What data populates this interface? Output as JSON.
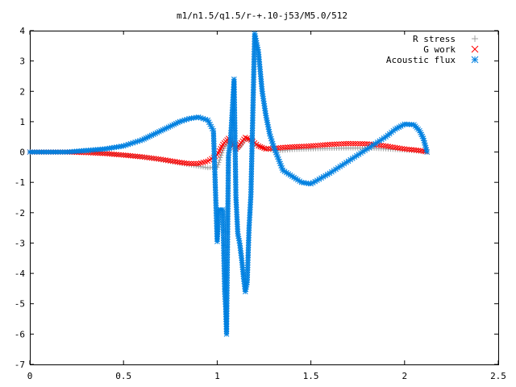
{
  "chart_data": {
    "type": "scatter",
    "title": "m1/n1.5/q1.5/r-+.10-j53/M5.0/512",
    "xlabel": "",
    "ylabel": "",
    "xlim": [
      0,
      2.5
    ],
    "ylim": [
      -7,
      4
    ],
    "x_ticks": [
      "0",
      "0.5",
      "1",
      "1.5",
      "2",
      "2.5"
    ],
    "y_ticks": [
      "-7",
      "-6",
      "-5",
      "-4",
      "-3",
      "-2",
      "-1",
      "0",
      "1",
      "2",
      "3",
      "4"
    ],
    "grid": false,
    "legend_position": "top-right",
    "series": [
      {
        "name": "R stress",
        "marker": "+",
        "color": "#a0a0a0",
        "points": [
          [
            0.0,
            0.0
          ],
          [
            0.1,
            0.0
          ],
          [
            0.2,
            0.0
          ],
          [
            0.3,
            -0.02
          ],
          [
            0.4,
            -0.05
          ],
          [
            0.5,
            -0.1
          ],
          [
            0.6,
            -0.17
          ],
          [
            0.7,
            -0.26
          ],
          [
            0.8,
            -0.37
          ],
          [
            0.85,
            -0.42
          ],
          [
            0.9,
            -0.47
          ],
          [
            0.95,
            -0.52
          ],
          [
            1.0,
            -0.5
          ],
          [
            1.03,
            0.05
          ],
          [
            1.06,
            0.4
          ],
          [
            1.08,
            0.3
          ],
          [
            1.1,
            0.05
          ],
          [
            1.12,
            0.15
          ],
          [
            1.15,
            0.45
          ],
          [
            1.18,
            0.35
          ],
          [
            1.22,
            0.2
          ],
          [
            1.26,
            0.1
          ],
          [
            1.3,
            0.05
          ],
          [
            1.35,
            0.05
          ],
          [
            1.4,
            0.08
          ],
          [
            1.5,
            0.1
          ],
          [
            1.6,
            0.12
          ],
          [
            1.7,
            0.13
          ],
          [
            1.8,
            0.13
          ],
          [
            1.9,
            0.1
          ],
          [
            2.0,
            0.06
          ],
          [
            2.05,
            0.04
          ],
          [
            2.1,
            0.01
          ],
          [
            2.12,
            0.0
          ]
        ]
      },
      {
        "name": "G work",
        "marker": "x",
        "color": "#ff0000",
        "points": [
          [
            0.0,
            0.0
          ],
          [
            0.1,
            0.0
          ],
          [
            0.2,
            0.0
          ],
          [
            0.3,
            -0.02
          ],
          [
            0.4,
            -0.05
          ],
          [
            0.5,
            -0.1
          ],
          [
            0.6,
            -0.16
          ],
          [
            0.7,
            -0.24
          ],
          [
            0.8,
            -0.34
          ],
          [
            0.85,
            -0.38
          ],
          [
            0.9,
            -0.38
          ],
          [
            0.95,
            -0.3
          ],
          [
            1.0,
            -0.1
          ],
          [
            1.03,
            0.25
          ],
          [
            1.06,
            0.45
          ],
          [
            1.08,
            0.3
          ],
          [
            1.1,
            0.1
          ],
          [
            1.12,
            0.25
          ],
          [
            1.15,
            0.48
          ],
          [
            1.18,
            0.4
          ],
          [
            1.22,
            0.2
          ],
          [
            1.26,
            0.1
          ],
          [
            1.3,
            0.12
          ],
          [
            1.35,
            0.15
          ],
          [
            1.4,
            0.17
          ],
          [
            1.5,
            0.2
          ],
          [
            1.6,
            0.25
          ],
          [
            1.7,
            0.28
          ],
          [
            1.8,
            0.27
          ],
          [
            1.9,
            0.2
          ],
          [
            2.0,
            0.1
          ],
          [
            2.05,
            0.07
          ],
          [
            2.1,
            0.03
          ],
          [
            2.12,
            0.0
          ]
        ]
      },
      {
        "name": "Acoustic flux",
        "marker": "*",
        "color": "#0080e0",
        "points": [
          [
            0.0,
            0.0
          ],
          [
            0.1,
            0.0
          ],
          [
            0.2,
            0.0
          ],
          [
            0.3,
            0.05
          ],
          [
            0.4,
            0.1
          ],
          [
            0.5,
            0.2
          ],
          [
            0.6,
            0.4
          ],
          [
            0.65,
            0.55
          ],
          [
            0.7,
            0.7
          ],
          [
            0.75,
            0.85
          ],
          [
            0.8,
            1.0
          ],
          [
            0.85,
            1.1
          ],
          [
            0.9,
            1.15
          ],
          [
            0.95,
            1.05
          ],
          [
            0.98,
            0.7
          ],
          [
            1.0,
            -2.95
          ],
          [
            1.01,
            -1.9
          ],
          [
            1.02,
            -1.9
          ],
          [
            1.03,
            -1.9
          ],
          [
            1.04,
            -4.6
          ],
          [
            1.045,
            -5.1
          ],
          [
            1.05,
            -6.0
          ],
          [
            1.06,
            -0.1
          ],
          [
            1.07,
            0.3
          ],
          [
            1.08,
            1.3
          ],
          [
            1.09,
            2.4
          ],
          [
            1.1,
            -1.5
          ],
          [
            1.11,
            -2.7
          ],
          [
            1.12,
            -3.0
          ],
          [
            1.13,
            -3.5
          ],
          [
            1.14,
            -4.1
          ],
          [
            1.15,
            -4.6
          ],
          [
            1.16,
            -4.3
          ],
          [
            1.17,
            -2.5
          ],
          [
            1.18,
            -1.4
          ],
          [
            1.2,
            3.9
          ],
          [
            1.22,
            3.3
          ],
          [
            1.24,
            2.0
          ],
          [
            1.26,
            1.2
          ],
          [
            1.28,
            0.6
          ],
          [
            1.3,
            0.2
          ],
          [
            1.35,
            -0.6
          ],
          [
            1.4,
            -0.8
          ],
          [
            1.45,
            -1.0
          ],
          [
            1.5,
            -1.05
          ],
          [
            1.6,
            -0.7
          ],
          [
            1.7,
            -0.3
          ],
          [
            1.8,
            0.1
          ],
          [
            1.9,
            0.5
          ],
          [
            1.95,
            0.75
          ],
          [
            2.0,
            0.92
          ],
          [
            2.05,
            0.9
          ],
          [
            2.08,
            0.7
          ],
          [
            2.1,
            0.45
          ],
          [
            2.12,
            0.0
          ]
        ]
      }
    ]
  }
}
